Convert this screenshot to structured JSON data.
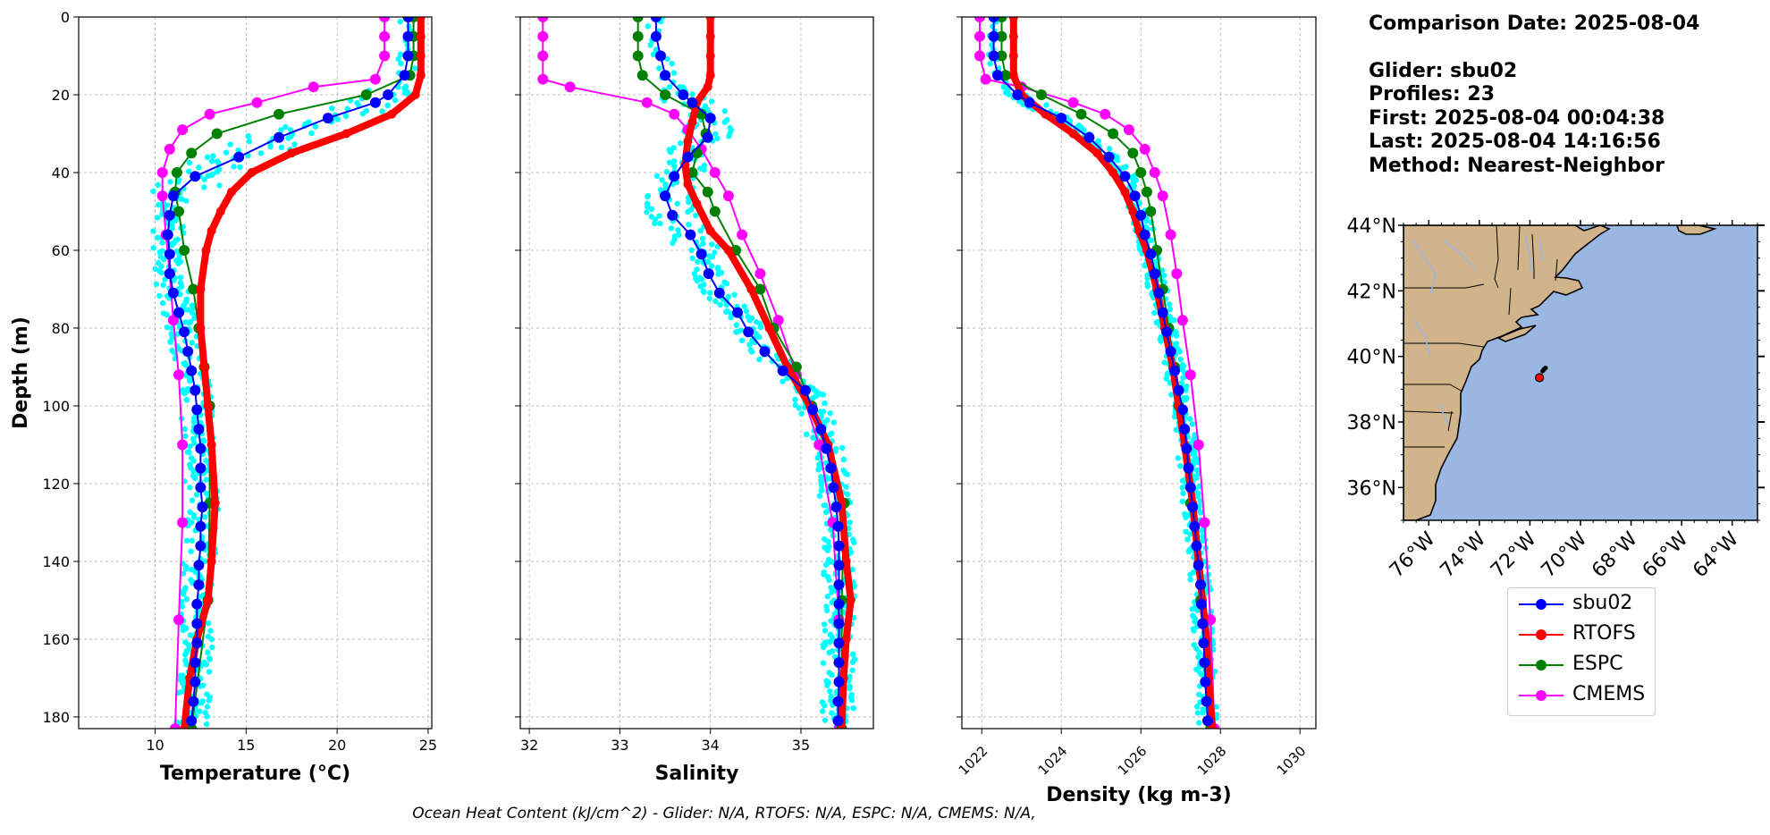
{
  "info": {
    "comparison_date": "Comparison Date: 2025-08-04",
    "glider": "Glider: sbu02",
    "profiles": "Profiles: 23",
    "first": "First: 2025-08-04 00:04:38",
    "last": "Last: 2025-08-04 14:16:56",
    "method": "Method: Nearest-Neighbor"
  },
  "footer": "Ocean Heat Content (kJ/cm^2) - Glider: N/A,  RTOFS: N/A,  ESPC: N/A,  CMEMS: N/A,",
  "colors": {
    "sbu02": "#0000ff",
    "RTOFS": "#ff0000",
    "ESPC": "#008000",
    "CMEMS": "#ff00ff",
    "glider_points": "#00ffff",
    "land": "#d2b48c",
    "ocean": "#9ab7e3"
  },
  "legend": [
    {
      "name": "sbu02",
      "color": "#0000ff"
    },
    {
      "name": "RTOFS",
      "color": "#ff0000"
    },
    {
      "name": "ESPC",
      "color": "#008000"
    },
    {
      "name": "CMEMS",
      "color": "#ff00ff"
    }
  ],
  "chart_data": [
    {
      "type": "line",
      "xlabel": "Temperature (°C)",
      "ylabel": "Depth (m)",
      "xlim": [
        5.8,
        25.2
      ],
      "ylim": [
        183,
        0
      ],
      "xticks": [
        10,
        15,
        20,
        25
      ],
      "yticks": [
        0,
        20,
        40,
        60,
        80,
        100,
        120,
        140,
        160,
        180
      ],
      "grid": true,
      "series": [
        {
          "name": "sbu02",
          "depth": [
            0,
            5,
            10,
            15,
            20,
            22,
            26,
            31,
            36,
            41,
            46,
            51,
            56,
            61,
            66,
            71,
            76,
            81,
            86,
            91,
            96,
            101,
            106,
            111,
            116,
            121,
            126,
            131,
            136,
            141,
            146,
            151,
            156,
            161,
            166,
            171,
            176,
            181
          ],
          "values": [
            23.9,
            23.9,
            23.9,
            23.7,
            22.8,
            22.1,
            19.5,
            16.8,
            14.6,
            12.2,
            11.0,
            10.8,
            10.7,
            10.8,
            10.8,
            11.0,
            11.3,
            11.6,
            11.8,
            12.0,
            12.2,
            12.3,
            12.4,
            12.5,
            12.5,
            12.5,
            12.6,
            12.5,
            12.5,
            12.4,
            12.4,
            12.3,
            12.3,
            12.3,
            12.2,
            12.2,
            12.1,
            12.0
          ]
        },
        {
          "name": "RTOFS",
          "depth": [
            0,
            5,
            10,
            15,
            20,
            25,
            30,
            35,
            40,
            45,
            50,
            55,
            60,
            70,
            80,
            90,
            100,
            110,
            125,
            140,
            150,
            160,
            170,
            183
          ],
          "values": [
            24.6,
            24.6,
            24.6,
            24.6,
            24.3,
            23.0,
            20.5,
            17.5,
            15.3,
            14.2,
            13.6,
            13.1,
            12.8,
            12.5,
            12.5,
            12.7,
            12.9,
            13.1,
            13.3,
            13.1,
            12.9,
            12.3,
            11.9,
            11.6
          ]
        },
        {
          "name": "ESPC",
          "depth": [
            0,
            5,
            10,
            15,
            20,
            25,
            30,
            35,
            40,
            45,
            50,
            60,
            70,
            80,
            90,
            100,
            125,
            150,
            183
          ],
          "values": [
            24.2,
            24.2,
            24.2,
            24.0,
            21.6,
            16.8,
            13.4,
            12.0,
            11.2,
            11.1,
            11.3,
            11.6,
            12.1,
            12.4,
            12.7,
            13.0,
            13.0,
            12.9,
            12.0
          ]
        },
        {
          "name": "CMEMS",
          "depth": [
            0,
            5,
            10,
            16,
            18,
            22,
            25,
            29,
            34,
            40,
            46,
            56,
            66,
            78,
            92,
            110,
            130,
            155,
            183
          ],
          "values": [
            22.6,
            22.6,
            22.6,
            22.1,
            18.7,
            15.6,
            13.0,
            11.5,
            10.8,
            10.4,
            10.4,
            10.6,
            10.8,
            11.0,
            11.3,
            11.5,
            11.5,
            11.3,
            11.1
          ]
        }
      ]
    },
    {
      "type": "line",
      "xlabel": "Salinity",
      "ylabel": "",
      "xlim": [
        31.9,
        35.8
      ],
      "ylim": [
        183,
        0
      ],
      "xticks": [
        32,
        33,
        34,
        35
      ],
      "yticks": [
        0,
        20,
        40,
        60,
        80,
        100,
        120,
        140,
        160,
        180
      ],
      "grid": true,
      "series": [
        {
          "name": "sbu02",
          "depth": [
            0,
            5,
            10,
            15,
            20,
            22,
            26,
            31,
            36,
            41,
            46,
            51,
            56,
            61,
            66,
            71,
            76,
            81,
            86,
            91,
            96,
            101,
            106,
            111,
            116,
            121,
            126,
            131,
            136,
            141,
            146,
            151,
            156,
            161,
            166,
            171,
            176,
            181
          ],
          "values": [
            33.4,
            33.4,
            33.45,
            33.5,
            33.7,
            33.8,
            34.0,
            33.97,
            33.75,
            33.6,
            33.5,
            33.58,
            33.78,
            33.9,
            33.98,
            34.1,
            34.3,
            34.42,
            34.6,
            34.8,
            35.05,
            35.13,
            35.22,
            35.28,
            35.33,
            35.36,
            35.39,
            35.41,
            35.42,
            35.42,
            35.42,
            35.42,
            35.42,
            35.42,
            35.42,
            35.42,
            35.41,
            35.41
          ]
        },
        {
          "name": "RTOFS",
          "depth": [
            0,
            5,
            10,
            15,
            18,
            22,
            27,
            32,
            38,
            43,
            48,
            55,
            60,
            70,
            80,
            90,
            100,
            110,
            125,
            140,
            150,
            160,
            170,
            183
          ],
          "values": [
            34.0,
            34.0,
            34.0,
            34.0,
            33.97,
            33.85,
            33.8,
            33.75,
            33.72,
            33.75,
            33.85,
            34.0,
            34.2,
            34.45,
            34.65,
            34.85,
            35.1,
            35.3,
            35.45,
            35.5,
            35.55,
            35.5,
            35.47,
            35.45
          ]
        },
        {
          "name": "ESPC",
          "depth": [
            0,
            5,
            10,
            15,
            20,
            25,
            30,
            35,
            40,
            45,
            50,
            60,
            70,
            80,
            90,
            100,
            125,
            150,
            183
          ],
          "values": [
            33.2,
            33.2,
            33.2,
            33.25,
            33.5,
            33.9,
            33.95,
            33.85,
            33.8,
            33.97,
            34.05,
            34.28,
            34.55,
            34.7,
            34.95,
            35.12,
            35.48,
            35.45,
            35.45
          ]
        },
        {
          "name": "CMEMS",
          "depth": [
            0,
            5,
            10,
            16,
            18,
            22,
            25,
            29,
            34,
            40,
            46,
            56,
            66,
            78,
            92,
            110,
            130,
            155,
            183
          ],
          "values": [
            32.15,
            32.15,
            32.15,
            32.15,
            32.45,
            33.3,
            33.6,
            33.75,
            33.9,
            34.05,
            34.2,
            34.35,
            34.55,
            34.75,
            34.95,
            35.2,
            35.35,
            35.42,
            35.42
          ]
        }
      ]
    },
    {
      "type": "line",
      "xlabel": "Density (kg m-3)",
      "ylabel": "",
      "xlim": [
        1021.5,
        1030.4
      ],
      "ylim": [
        183,
        0
      ],
      "xticks": [
        1022,
        1024,
        1026,
        1028,
        1030
      ],
      "yticks": [
        0,
        20,
        40,
        60,
        80,
        100,
        120,
        140,
        160,
        180
      ],
      "grid": true,
      "series": [
        {
          "name": "sbu02",
          "depth": [
            0,
            5,
            10,
            15,
            20,
            22,
            26,
            31,
            36,
            41,
            46,
            51,
            56,
            61,
            66,
            71,
            76,
            81,
            86,
            91,
            96,
            101,
            106,
            111,
            116,
            121,
            126,
            131,
            136,
            141,
            146,
            151,
            156,
            161,
            166,
            171,
            176,
            181
          ],
          "values": [
            1022.3,
            1022.3,
            1022.3,
            1022.4,
            1022.9,
            1023.2,
            1024.0,
            1024.7,
            1025.2,
            1025.6,
            1025.85,
            1026.0,
            1026.1,
            1026.25,
            1026.35,
            1026.45,
            1026.55,
            1026.65,
            1026.75,
            1026.85,
            1026.95,
            1027.05,
            1027.1,
            1027.15,
            1027.2,
            1027.25,
            1027.3,
            1027.35,
            1027.4,
            1027.45,
            1027.5,
            1027.52,
            1027.55,
            1027.58,
            1027.6,
            1027.62,
            1027.65,
            1027.68
          ]
        },
        {
          "name": "RTOFS",
          "depth": [
            0,
            5,
            10,
            15,
            20,
            25,
            30,
            35,
            40,
            45,
            50,
            55,
            60,
            70,
            80,
            90,
            100,
            110,
            125,
            140,
            150,
            160,
            170,
            183
          ],
          "values": [
            1022.8,
            1022.8,
            1022.8,
            1022.8,
            1023.0,
            1023.6,
            1024.3,
            1024.9,
            1025.3,
            1025.6,
            1025.8,
            1025.95,
            1026.15,
            1026.4,
            1026.6,
            1026.8,
            1026.95,
            1027.1,
            1027.3,
            1027.45,
            1027.55,
            1027.65,
            1027.7,
            1027.8
          ]
        },
        {
          "name": "ESPC",
          "depth": [
            0,
            5,
            10,
            15,
            20,
            25,
            30,
            35,
            40,
            45,
            50,
            60,
            70,
            80,
            90,
            100,
            125,
            150,
            183
          ],
          "values": [
            1022.5,
            1022.5,
            1022.5,
            1022.6,
            1023.5,
            1024.5,
            1025.3,
            1025.8,
            1026.0,
            1026.15,
            1026.25,
            1026.4,
            1026.55,
            1026.7,
            1026.85,
            1026.95,
            1027.25,
            1027.5,
            1027.75
          ]
        },
        {
          "name": "CMEMS",
          "depth": [
            0,
            5,
            10,
            16,
            18,
            22,
            25,
            29,
            34,
            40,
            46,
            56,
            66,
            78,
            92,
            110,
            130,
            155,
            183
          ],
          "values": [
            1021.95,
            1021.95,
            1021.95,
            1022.1,
            1023.0,
            1024.3,
            1025.1,
            1025.7,
            1026.1,
            1026.35,
            1026.55,
            1026.75,
            1026.9,
            1027.05,
            1027.25,
            1027.45,
            1027.6,
            1027.75,
            1027.85
          ]
        }
      ]
    },
    {
      "type": "map",
      "lon_range": [
        -77,
        -63
      ],
      "lat_range": [
        35,
        44
      ],
      "xticks": [
        "76°W",
        "74°W",
        "72°W",
        "70°W",
        "68°W",
        "66°W",
        "64°W"
      ],
      "yticks": [
        "44°N",
        "42°N",
        "40°N",
        "38°N",
        "36°N"
      ],
      "glider_track": [
        [
          -71.5,
          39.55
        ],
        [
          -71.45,
          39.6
        ],
        [
          -71.38,
          39.65
        ]
      ],
      "model_point": [
        -71.62,
        39.35
      ]
    }
  ]
}
